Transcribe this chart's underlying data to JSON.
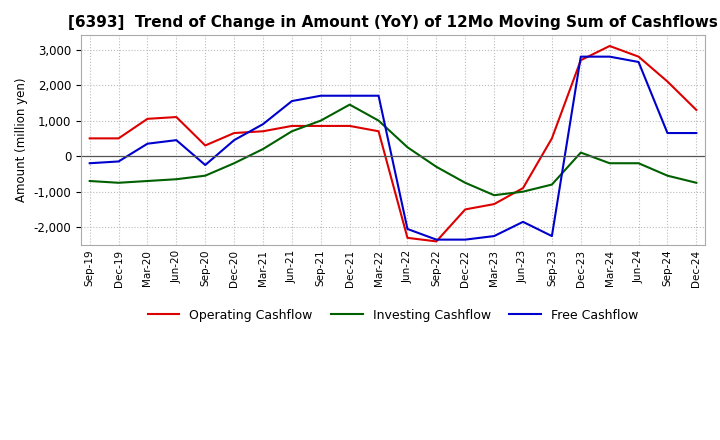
{
  "title": "[6393]  Trend of Change in Amount (YoY) of 12Mo Moving Sum of Cashflows",
  "ylabel": "Amount (million yen)",
  "x_labels": [
    "Sep-19",
    "Dec-19",
    "Mar-20",
    "Jun-20",
    "Sep-20",
    "Dec-20",
    "Mar-21",
    "Jun-21",
    "Sep-21",
    "Dec-21",
    "Mar-22",
    "Jun-22",
    "Sep-22",
    "Dec-22",
    "Mar-23",
    "Jun-23",
    "Sep-23",
    "Dec-23",
    "Mar-24",
    "Jun-24",
    "Sep-24",
    "Dec-24"
  ],
  "operating": [
    500,
    500,
    1050,
    1100,
    300,
    650,
    700,
    850,
    850,
    850,
    700,
    -2300,
    -2400,
    -1500,
    -1350,
    -900,
    500,
    2700,
    3100,
    2800,
    2100,
    1300
  ],
  "investing": [
    -700,
    -750,
    -700,
    -650,
    -550,
    -200,
    200,
    700,
    1000,
    1450,
    1000,
    250,
    -300,
    -750,
    -1100,
    -1000,
    -800,
    100,
    -200,
    -200,
    -550,
    -750
  ],
  "free": [
    -200,
    -150,
    350,
    450,
    -250,
    450,
    900,
    1550,
    1700,
    1700,
    1700,
    -2050,
    -2350,
    -2350,
    -2250,
    -1850,
    -2250,
    2800,
    2800,
    2650,
    650,
    650
  ],
  "ylim": [
    -2500,
    3400
  ],
  "yticks": [
    -2000,
    -1000,
    0,
    1000,
    2000,
    3000
  ],
  "operating_color": "#dd0000",
  "investing_color": "#006000",
  "free_color": "#0000cc",
  "background_color": "#ffffff",
  "grid_color": "#bbbbbb",
  "title_fontsize": 11,
  "legend_labels": [
    "Operating Cashflow",
    "Investing Cashflow",
    "Free Cashflow"
  ]
}
